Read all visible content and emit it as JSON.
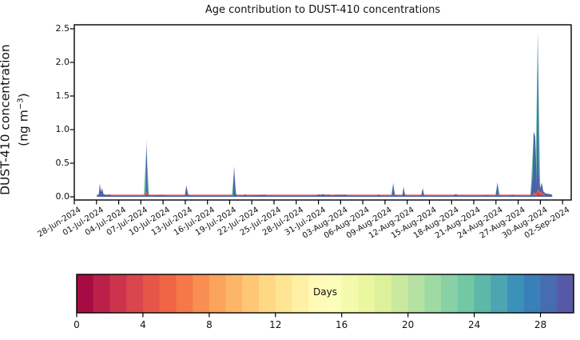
{
  "title": "Age contribution to DUST-410 concentrations",
  "chart_data": {
    "type": "area",
    "title": "Age contribution to DUST-410 concentrations",
    "ylabel": "DUST-410 concentration (ng m−3)",
    "ylabel_line1": "DUST-410 concentration",
    "ylabel_unit_prefix": "(ng m",
    "ylabel_unit_sup": "−3",
    "ylabel_unit_suffix": ")",
    "yticks": [
      0.0,
      0.5,
      1.0,
      1.5,
      2.0,
      2.5
    ],
    "ylim": [
      -0.05,
      2.56
    ],
    "grid": false,
    "xtick_labels": [
      "28-Jun-2024",
      "01-Jul-2024",
      "04-Jul-2024",
      "07-Jul-2024",
      "10-Jul-2024",
      "13-Jul-2024",
      "16-Jul-2024",
      "19-Jul-2024",
      "22-Jul-2024",
      "25-Jul-2024",
      "28-Jul-2024",
      "31-Jul-2024",
      "03-Aug-2024",
      "06-Aug-2024",
      "09-Aug-2024",
      "12-Aug-2024",
      "15-Aug-2024",
      "18-Aug-2024",
      "21-Aug-2024",
      "24-Aug-2024",
      "27-Aug-2024",
      "30-Aug-2024",
      "02-Sep-2024"
    ],
    "xtick_days": [
      0,
      3,
      6,
      9,
      12,
      15,
      18,
      21,
      24,
      27,
      30,
      33,
      36,
      39,
      42,
      45,
      48,
      51,
      54,
      57,
      60,
      63,
      66
    ],
    "baseline_value": 0.02,
    "data_day_range": [
      3.05,
      64.6
    ],
    "peaks": [
      {
        "date": "01-Jul-2024",
        "value": 0.2
      },
      {
        "date": "08-Jul-2024",
        "value": 0.85
      },
      {
        "date": "13-Jul-2024",
        "value": 0.17
      },
      {
        "date": "19-Jul-2024",
        "value": 0.46
      },
      {
        "date": "10-Aug-2024",
        "value": 0.21
      },
      {
        "date": "12-Aug-2024",
        "value": 0.15
      },
      {
        "date": "14-Aug-2024",
        "value": 0.13
      },
      {
        "date": "25-Aug-2024",
        "value": 0.22
      },
      {
        "date": "29-Aug-2024",
        "value": 0.97
      },
      {
        "date": "30-Aug-2024",
        "value": 2.46
      },
      {
        "date": "31-Aug-2024",
        "value": 0.21
      }
    ],
    "series_outline": [
      [
        3.05,
        0.02
      ],
      [
        3.3,
        0.03
      ],
      [
        3.45,
        0.2
      ],
      [
        3.6,
        0.07
      ],
      [
        3.75,
        0.13
      ],
      [
        3.95,
        0.04
      ],
      [
        4.2,
        0.025
      ],
      [
        4.8,
        0.03
      ],
      [
        5.0,
        0.02
      ],
      [
        9.5,
        0.02
      ],
      [
        9.65,
        0.1
      ],
      [
        9.75,
        0.85
      ],
      [
        9.9,
        0.12
      ],
      [
        10.05,
        0.03
      ],
      [
        10.2,
        0.02
      ],
      [
        12.0,
        0.025
      ],
      [
        12.3,
        0.02
      ],
      [
        14.95,
        0.02
      ],
      [
        15.15,
        0.17
      ],
      [
        15.4,
        0.03
      ],
      [
        15.55,
        0.02
      ],
      [
        21.45,
        0.02
      ],
      [
        21.6,
        0.46
      ],
      [
        21.8,
        0.06
      ],
      [
        21.95,
        0.02
      ],
      [
        22.9,
        0.02
      ],
      [
        23.1,
        0.035
      ],
      [
        23.35,
        0.02
      ],
      [
        25.4,
        0.025
      ],
      [
        25.7,
        0.03
      ],
      [
        25.95,
        0.02
      ],
      [
        28.0,
        0.02
      ],
      [
        32.7,
        0.02
      ],
      [
        33.0,
        0.035
      ],
      [
        33.3,
        0.025
      ],
      [
        33.6,
        0.04
      ],
      [
        33.9,
        0.025
      ],
      [
        34.4,
        0.03
      ],
      [
        34.8,
        0.02
      ],
      [
        35.7,
        0.03
      ],
      [
        36.1,
        0.025
      ],
      [
        36.6,
        0.03
      ],
      [
        37.0,
        0.02
      ],
      [
        40.9,
        0.02
      ],
      [
        41.1,
        0.03
      ],
      [
        41.4,
        0.02
      ],
      [
        42.95,
        0.02
      ],
      [
        43.1,
        0.21
      ],
      [
        43.3,
        0.03
      ],
      [
        43.45,
        0.02
      ],
      [
        44.35,
        0.02
      ],
      [
        44.5,
        0.15
      ],
      [
        44.7,
        0.03
      ],
      [
        44.85,
        0.02
      ],
      [
        46.9,
        0.02
      ],
      [
        47.1,
        0.13
      ],
      [
        47.3,
        0.02
      ],
      [
        51.3,
        0.02
      ],
      [
        51.55,
        0.04
      ],
      [
        51.85,
        0.02
      ],
      [
        55.4,
        0.02
      ],
      [
        55.6,
        0.025
      ],
      [
        55.8,
        0.02
      ],
      [
        57.0,
        0.02
      ],
      [
        57.2,
        0.22
      ],
      [
        57.4,
        0.03
      ],
      [
        57.55,
        0.02
      ],
      [
        59.0,
        0.02
      ],
      [
        59.2,
        0.03
      ],
      [
        59.45,
        0.02
      ],
      [
        61.7,
        0.02
      ],
      [
        61.95,
        0.3
      ],
      [
        62.1,
        0.97
      ],
      [
        62.3,
        0.9
      ],
      [
        62.5,
        0.2
      ],
      [
        62.65,
        2.46
      ],
      [
        62.8,
        0.35
      ],
      [
        62.95,
        0.12
      ],
      [
        63.2,
        0.21
      ],
      [
        63.4,
        0.08
      ],
      [
        63.7,
        0.05
      ],
      [
        64.0,
        0.045
      ],
      [
        64.3,
        0.04
      ],
      [
        64.55,
        0.03
      ],
      [
        64.6,
        0.02
      ]
    ],
    "teal_spikes": [
      [
        9.75,
        0.75,
        0.35
      ],
      [
        21.6,
        0.4,
        0.3
      ],
      [
        43.1,
        0.18,
        0.28
      ],
      [
        57.2,
        0.19,
        0.3
      ],
      [
        62.1,
        0.92,
        0.45
      ],
      [
        62.65,
        2.4,
        0.35
      ],
      [
        63.2,
        0.18,
        0.3
      ]
    ],
    "orange_bumps": [
      [
        9.75,
        0.09,
        0.3
      ],
      [
        15.15,
        0.03,
        0.2
      ],
      [
        43.1,
        0.035,
        0.2
      ],
      [
        47.1,
        0.03,
        0.2
      ],
      [
        57.2,
        0.04,
        0.25
      ],
      [
        62.2,
        0.07,
        0.3
      ],
      [
        62.7,
        0.12,
        0.35
      ],
      [
        63.1,
        0.09,
        0.3
      ],
      [
        63.45,
        0.05,
        0.25
      ]
    ],
    "red_bumps": [
      [
        9.75,
        0.05,
        0.18
      ],
      [
        62.7,
        0.07,
        0.22
      ],
      [
        63.1,
        0.05,
        0.2
      ]
    ],
    "colors": {
      "dominant_blue": "#4a63ab",
      "teal": "#66c2a5",
      "orange": "#e8623f",
      "red": "#c9344a",
      "pink_top_line": "#e8939b",
      "axis": "#000000",
      "background": "#ffffff"
    },
    "pink_line_value": 0.028,
    "colorbar": {
      "label": "Days",
      "ticks": [
        0,
        4,
        8,
        12,
        16,
        20,
        24,
        28
      ],
      "vmin": 0,
      "vmax": 30,
      "n_bins": 30,
      "spectral_anchors": [
        "#9e0142",
        "#d53e4f",
        "#f46d43",
        "#fdae61",
        "#fee08b",
        "#ffffbf",
        "#e6f598",
        "#abdda4",
        "#66c2a5",
        "#3288bd",
        "#5e4fa2"
      ]
    }
  }
}
